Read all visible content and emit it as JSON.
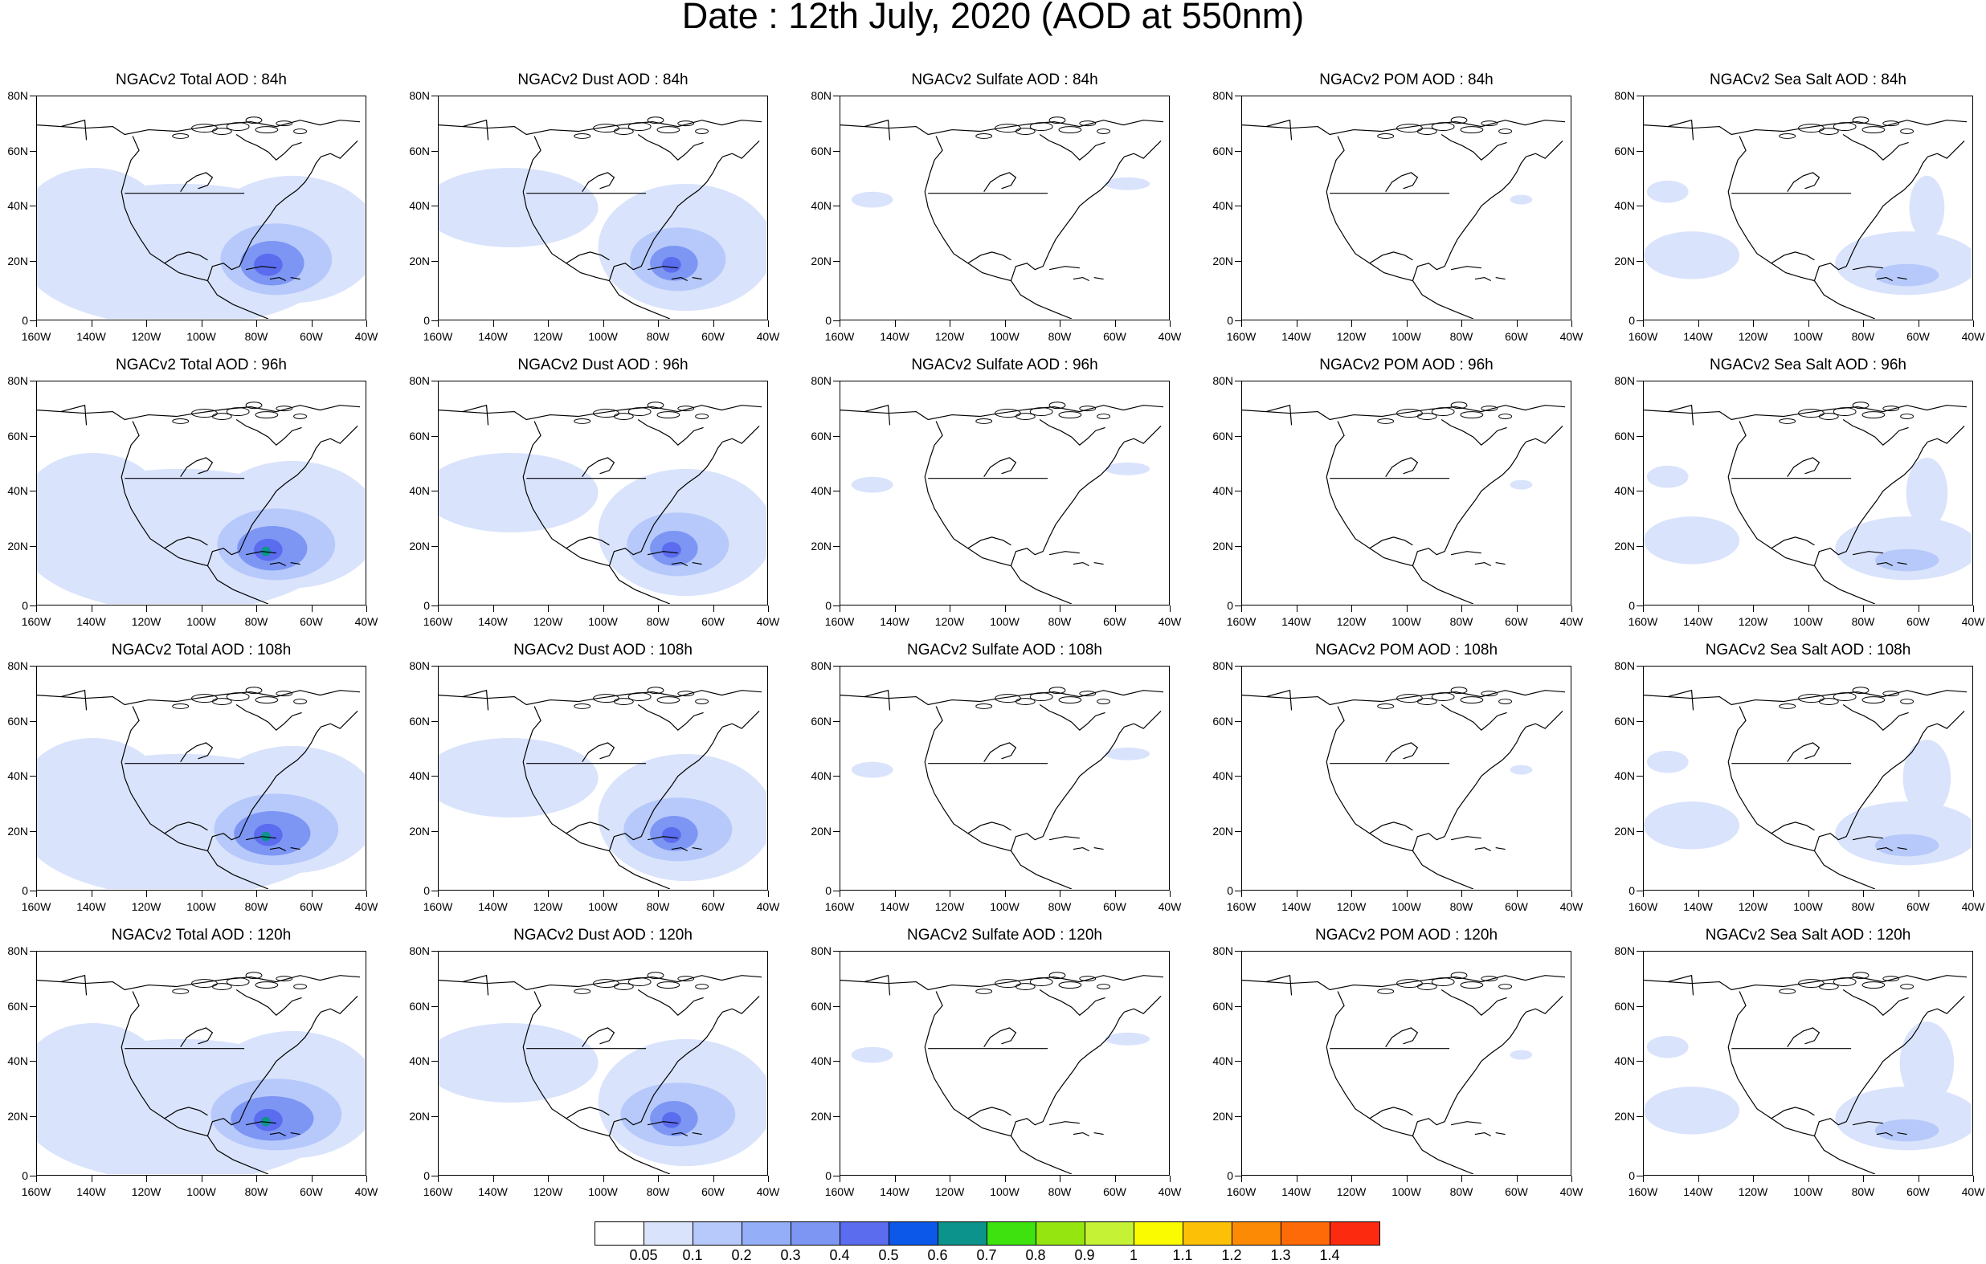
{
  "title": "Date : 12th July, 2020 (AOD at 550nm)",
  "lat_labels": [
    "80N",
    "60N",
    "40N",
    "20N",
    "0"
  ],
  "lon_labels": [
    "160W",
    "140W",
    "120W",
    "100W",
    "80W",
    "60W",
    "40W"
  ],
  "panels": [
    [
      "NGACv2 Total AOD : 84h",
      "NGACv2 Dust AOD : 84h",
      "NGACv2 Sulfate AOD : 84h",
      "NGACv2 POM AOD : 84h",
      "NGACv2 Sea Salt AOD : 84h"
    ],
    [
      "NGACv2 Total AOD : 96h",
      "NGACv2 Dust AOD : 96h",
      "NGACv2 Sulfate AOD : 96h",
      "NGACv2 POM AOD : 96h",
      "NGACv2 Sea Salt AOD : 96h"
    ],
    [
      "NGACv2 Total AOD : 108h",
      "NGACv2 Dust AOD : 108h",
      "NGACv2 Sulfate AOD : 108h",
      "NGACv2 POM AOD : 108h",
      "NGACv2 Sea Salt AOD : 108h"
    ],
    [
      "NGACv2 Total AOD : 120h",
      "NGACv2 Dust AOD : 120h",
      "NGACv2 Sulfate AOD : 120h",
      "NGACv2 POM AOD : 120h",
      "NGACv2 Sea Salt  AOD : 120h"
    ]
  ],
  "colorbar": {
    "labels": [
      "0.05",
      "0.1",
      "0.2",
      "0.3",
      "0.4",
      "0.5",
      "0.6",
      "0.7",
      "0.8",
      "0.9",
      "1",
      "1.1",
      "1.2",
      "1.3",
      "1.4"
    ],
    "colors": [
      "#ffffff",
      "#d9e3fc",
      "#b6c9fa",
      "#94aff8",
      "#7d96f4",
      "#5b6cee",
      "#0c58e8",
      "#0c948c",
      "#3ee20f",
      "#95e611",
      "#c6f235",
      "#fbfb00",
      "#fcc006",
      "#fc8a05",
      "#fd6a07",
      "#fc2a0f"
    ]
  },
  "colors": {
    "aod_light": "#d9e3fc",
    "aod_mid": "#b6c9fa",
    "aod_high": "#7d96f4",
    "aod_peak": "#5b6cee",
    "aod_green": "#0c948c"
  }
}
